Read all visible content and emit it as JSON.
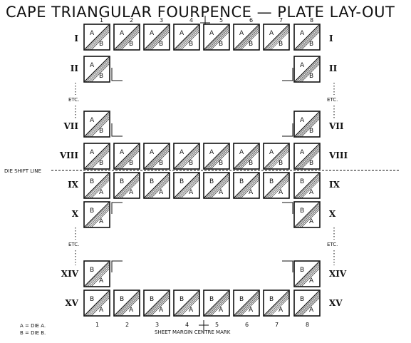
{
  "title": "CAPE TRIANGULAR FOURPENCE — PLATE LAY-OUT",
  "top_column_labels": [
    "1",
    "2",
    "3",
    "4",
    "5",
    "6",
    "7",
    "8"
  ],
  "bottom_column_labels": [
    "1",
    "2",
    "3",
    "4",
    "5",
    "6",
    "7",
    "8"
  ],
  "rows": [
    {
      "label": "I",
      "columns": [
        1,
        2,
        3,
        4,
        5,
        6,
        7,
        8
      ],
      "order": "AB"
    },
    {
      "label": "II",
      "columns": [
        1,
        8
      ],
      "order": "AB"
    },
    {
      "label": "VII",
      "columns": [
        1,
        8
      ],
      "order": "AB"
    },
    {
      "label": "VIII",
      "columns": [
        1,
        2,
        3,
        4,
        5,
        6,
        7,
        8
      ],
      "order": "AB"
    },
    {
      "label": "IX",
      "columns": [
        1,
        2,
        3,
        4,
        5,
        6,
        7,
        8
      ],
      "order": "BA"
    },
    {
      "label": "X",
      "columns": [
        1,
        8
      ],
      "order": "BA"
    },
    {
      "label": "XIV",
      "columns": [
        1,
        8
      ],
      "order": "BA"
    },
    {
      "label": "XV",
      "columns": [
        1,
        2,
        3,
        4,
        5,
        6,
        7,
        8
      ],
      "order": "BA"
    }
  ],
  "etc_label": "ETC.",
  "die_shift_line_label": "DIE SHIFT LINE",
  "sheet_margin_centre_mark_label": "SHEET MARGIN CENTRE MARK",
  "legend": [
    "A = DIE A.",
    "B = DIE B."
  ]
}
